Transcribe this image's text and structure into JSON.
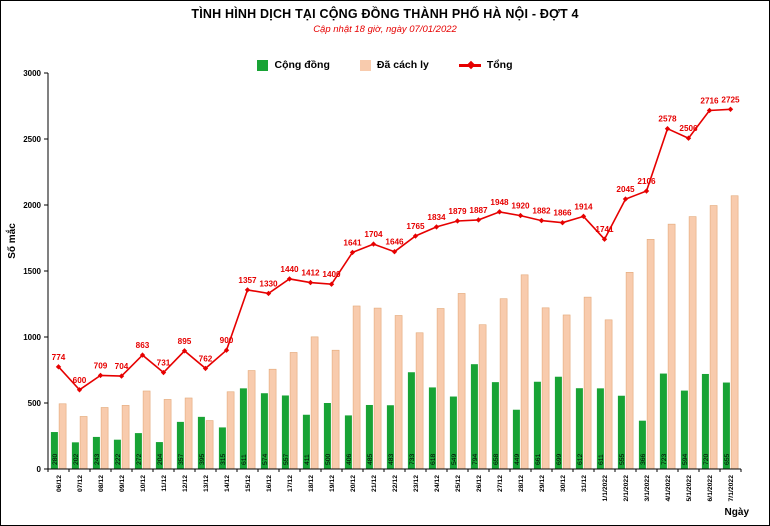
{
  "header": {
    "title": "TÌNH HÌNH DỊCH TẠI CỘNG ĐỒNG THÀNH PHỐ HÀ NỘI - ĐỢT 4",
    "subtitle": "Cập nhật 18 giờ, ngày 07/01/2022"
  },
  "legend": {
    "items": [
      {
        "label": "Cộng đồng",
        "color": "#18a335",
        "type": "bar"
      },
      {
        "label": "Đã cách ly",
        "color": "#f8cbad",
        "type": "bar"
      },
      {
        "label": "Tổng",
        "color": "#e60000",
        "type": "line"
      }
    ]
  },
  "colors": {
    "community_green": "#18a335",
    "quarantine_peach": "#f8cbad",
    "quarantine_border": "#e3a878",
    "total_red": "#e60000",
    "axis_black": "#000000"
  },
  "chart_data": {
    "type": "bar",
    "title": "TÌNH HÌNH DỊCH TẠI CỘNG ĐỒNG THÀNH PHỐ HÀ NỘI - ĐỢT 4",
    "subtitle": "Cập nhật 18 giờ, ngày 07/01/2022",
    "xlabel": "Ngày",
    "ylabel": "Số mắc",
    "ylim": [
      0,
      3000
    ],
    "yticks": [
      0,
      500,
      1000,
      1500,
      2000,
      2500,
      3000
    ],
    "grid": false,
    "legend_position": "top",
    "categories": [
      "06/12",
      "07/12",
      "08/12",
      "09/12",
      "10/12",
      "11/12",
      "12/12",
      "13/12",
      "14/12",
      "15/12",
      "16/12",
      "17/12",
      "18/12",
      "19/12",
      "20/12",
      "21/12",
      "22/12",
      "23/12",
      "24/12",
      "25/12",
      "26/12",
      "27/12",
      "28/12",
      "29/12",
      "30/12",
      "31/12",
      "1/1/2022",
      "2/1/2022",
      "3/1/2022",
      "4/1/2022",
      "5/1/2022",
      "6/1/2022",
      "7/1/2022"
    ],
    "series": [
      {
        "name": "Cộng đồng",
        "kind": "bar",
        "color": "#18a335",
        "labeled": true,
        "values": [
          280,
          202,
          243,
          222,
          272,
          204,
          357,
          395,
          315,
          611,
          574,
          557,
          411,
          500,
          406,
          485,
          483,
          733,
          618,
          549,
          794,
          658,
          449,
          661,
          699,
          612,
          611,
          555,
          366,
          723,
          594,
          720,
          655
        ]
      },
      {
        "name": "Đã cách ly",
        "kind": "bar",
        "color": "#f8cbad",
        "labeled": false,
        "values": [
          494,
          398,
          466,
          482,
          591,
          527,
          538,
          367,
          585,
          746,
          756,
          883,
          1001,
          900,
          1235,
          1219,
          1163,
          1032,
          1216,
          1330,
          1093,
          1290,
          1471,
          1221,
          1167,
          1302,
          1130,
          1490,
          1740,
          1855,
          1912,
          1996,
          2070
        ]
      },
      {
        "name": "Tổng",
        "kind": "line",
        "color": "#e60000",
        "labeled": true,
        "values": [
          774,
          600,
          709,
          704,
          863,
          731,
          895,
          762,
          900,
          1357,
          1330,
          1440,
          1412,
          1400,
          1641,
          1704,
          1646,
          1765,
          1834,
          1879,
          1887,
          1948,
          1920,
          1882,
          1866,
          1914,
          1741,
          2045,
          2106,
          2578,
          2506,
          2716,
          2725
        ]
      }
    ]
  }
}
